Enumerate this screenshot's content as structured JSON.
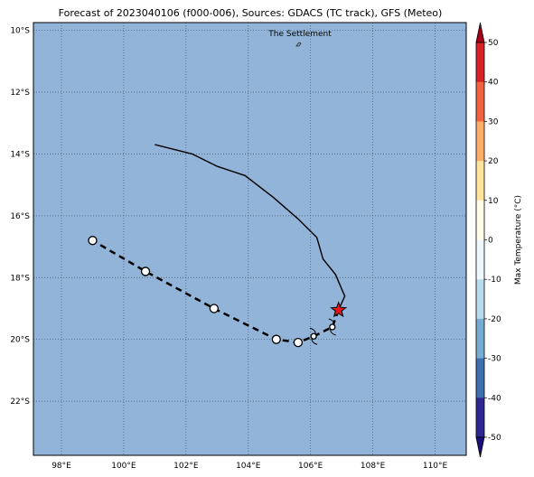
{
  "title": "Forecast of 2023040106 (f000-006), Sources: GDACS (TC track), GFS (Meteo)",
  "map": {
    "ocean_color": "#92b4d8",
    "grid": "dotted",
    "lat_labels": [
      "10°S",
      "12°S",
      "14°S",
      "16°S",
      "18°S",
      "20°S",
      "22°S"
    ],
    "lon_labels": [
      "98°E",
      "100°E",
      "102°E",
      "104°E",
      "106°E",
      "108°E",
      "110°E"
    ],
    "place_label": "The Settlement",
    "extent": {
      "lon": [
        97.1,
        111.0
      ],
      "lat": [
        -23.75,
        -9.75
      ]
    }
  },
  "tracks": {
    "observed_track": [
      [
        101.0,
        -13.7
      ],
      [
        102.2,
        -14.0
      ],
      [
        103.0,
        -14.4
      ],
      [
        103.9,
        -14.7
      ],
      [
        104.8,
        -15.4
      ],
      [
        105.6,
        -16.1
      ],
      [
        106.2,
        -16.7
      ],
      [
        106.4,
        -17.4
      ],
      [
        106.8,
        -17.9
      ],
      [
        107.1,
        -18.6
      ],
      [
        106.9,
        -19.05
      ]
    ],
    "forecast_track": [
      [
        106.9,
        -19.05
      ],
      [
        106.7,
        -19.6
      ],
      [
        106.1,
        -19.9
      ],
      [
        105.6,
        -20.1
      ],
      [
        104.9,
        -20.0
      ],
      [
        102.9,
        -19.0
      ],
      [
        100.7,
        -17.8
      ],
      [
        99.0,
        -16.8
      ]
    ],
    "forecast_points": [
      [
        106.7,
        -19.6
      ],
      [
        106.1,
        -19.9
      ],
      [
        105.6,
        -20.1
      ],
      [
        104.9,
        -20.0
      ],
      [
        102.9,
        -19.0
      ],
      [
        100.7,
        -17.8
      ],
      [
        99.0,
        -16.8
      ]
    ],
    "current_position": [
      106.9,
      -19.05
    ],
    "storm_symbols": [
      [
        106.7,
        -19.6
      ],
      [
        106.1,
        -19.9
      ]
    ]
  },
  "colorbar": {
    "label": "Max Temperature (°C)",
    "ticks": [
      "50",
      "40",
      "30",
      "20",
      "10",
      "0",
      "-10",
      "-20",
      "-30",
      "-40",
      "-50"
    ],
    "colors": [
      "#a5001a",
      "#d52227",
      "#ef633f",
      "#fcad68",
      "#fee49a",
      "#fffbe9",
      "#eef8fc",
      "#b7dceb",
      "#76acd1",
      "#3f6faf",
      "#2d2890",
      "#1a0f78"
    ]
  }
}
